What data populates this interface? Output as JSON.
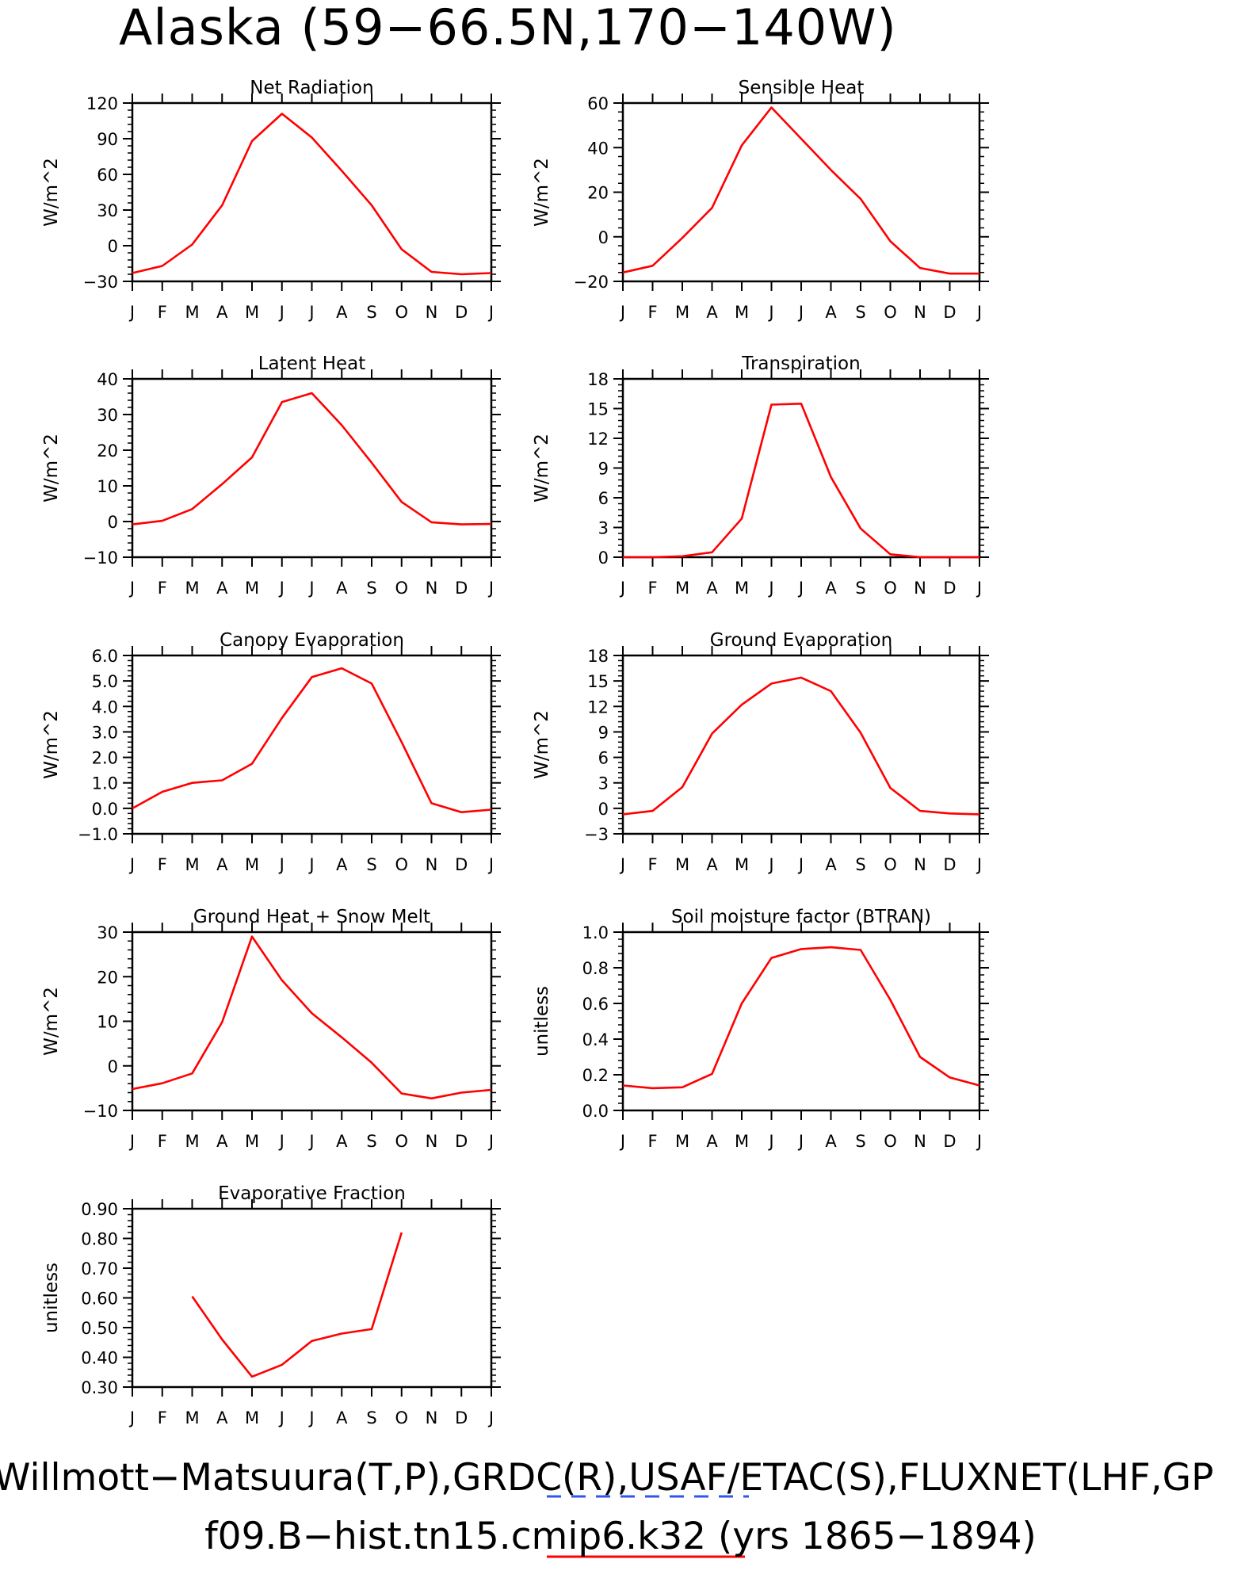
{
  "page": {
    "title": "Alaska (59−66.5N,170−140W)",
    "footer_line1": "Willmott−Matsuura(T,P),GRDC(R),USAF/ETAC(S),FLUXNET(LHF,GP",
    "footer_line2": "f09.B−hist.tn15.cmip6.k32 (yrs 1865−1894)",
    "colors": {
      "series": "#ff0000",
      "obs_legend": "#3355ee",
      "axes": "#000000"
    }
  },
  "chart_data": [
    {
      "type": "line",
      "title": "Net Radiation",
      "ylabel": "W/m^2",
      "x": [
        "J",
        "F",
        "M",
        "A",
        "M",
        "J",
        "J",
        "A",
        "S",
        "O",
        "N",
        "D",
        "J"
      ],
      "ylim": [
        -30,
        120
      ],
      "yticks": [
        -30,
        0,
        30,
        60,
        90,
        120
      ],
      "ytick_labels": [
        "−30",
        "0",
        "30",
        "60",
        "90",
        "120"
      ],
      "series": [
        {
          "values": [
            -23,
            -17,
            1,
            34,
            88,
            111,
            91,
            63,
            34,
            -3,
            -22,
            -24,
            -23
          ]
        }
      ]
    },
    {
      "type": "line",
      "title": "Sensible Heat",
      "ylabel": "W/m^2",
      "x": [
        "J",
        "F",
        "M",
        "A",
        "M",
        "J",
        "J",
        "A",
        "S",
        "O",
        "N",
        "D",
        "J"
      ],
      "ylim": [
        -20,
        60
      ],
      "yticks": [
        -20,
        0,
        20,
        40,
        60
      ],
      "ytick_labels": [
        "−20",
        "0",
        "20",
        "40",
        "60"
      ],
      "series": [
        {
          "values": [
            -16,
            -13,
            -0.5,
            13,
            41,
            58,
            44,
            30,
            17,
            -2,
            -14,
            -16.5,
            -16.5
          ]
        }
      ]
    },
    {
      "type": "line",
      "title": "Latent Heat",
      "ylabel": "W/m^2",
      "x": [
        "J",
        "F",
        "M",
        "A",
        "M",
        "J",
        "J",
        "A",
        "S",
        "O",
        "N",
        "D",
        "J"
      ],
      "ylim": [
        -10,
        40
      ],
      "yticks": [
        -10,
        0,
        10,
        20,
        30,
        40
      ],
      "ytick_labels": [
        "−10",
        "0",
        "10",
        "20",
        "30",
        "40"
      ],
      "series": [
        {
          "values": [
            -0.8,
            0.2,
            3.5,
            10.5,
            18,
            33.5,
            36,
            27,
            16.5,
            5.5,
            -0.2,
            -0.8,
            -0.7
          ]
        }
      ]
    },
    {
      "type": "line",
      "title": "Transpiration",
      "ylabel": "W/m^2",
      "x": [
        "J",
        "F",
        "M",
        "A",
        "M",
        "J",
        "J",
        "A",
        "S",
        "O",
        "N",
        "D",
        "J"
      ],
      "ylim": [
        0,
        18
      ],
      "yticks": [
        0,
        3,
        6,
        9,
        12,
        15,
        18
      ],
      "ytick_labels": [
        "0",
        "3",
        "6",
        "9",
        "12",
        "15",
        "18"
      ],
      "series": [
        {
          "values": [
            0,
            0,
            0.1,
            0.5,
            3.9,
            15.4,
            15.5,
            8.1,
            2.9,
            0.3,
            0,
            0,
            0
          ]
        }
      ]
    },
    {
      "type": "line",
      "title": "Canopy Evaporation",
      "ylabel": "W/m^2",
      "x": [
        "J",
        "F",
        "M",
        "A",
        "M",
        "J",
        "J",
        "A",
        "S",
        "O",
        "N",
        "D",
        "J"
      ],
      "ylim": [
        -1,
        6
      ],
      "yticks": [
        -1,
        0,
        1,
        2,
        3,
        4,
        5,
        6
      ],
      "ytick_labels": [
        "−1.0",
        "0.0",
        "1.0",
        "2.0",
        "3.0",
        "4.0",
        "5.0",
        "6.0"
      ],
      "series": [
        {
          "values": [
            0,
            0.65,
            1.0,
            1.1,
            1.75,
            3.55,
            5.15,
            5.5,
            4.9,
            2.6,
            0.2,
            -0.15,
            -0.05
          ]
        }
      ]
    },
    {
      "type": "line",
      "title": "Ground Evaporation",
      "ylabel": "W/m^2",
      "x": [
        "J",
        "F",
        "M",
        "A",
        "M",
        "J",
        "J",
        "A",
        "S",
        "O",
        "N",
        "D",
        "J"
      ],
      "ylim": [
        -3,
        18
      ],
      "yticks": [
        -3,
        0,
        3,
        6,
        9,
        12,
        15,
        18
      ],
      "ytick_labels": [
        "−3",
        "0",
        "3",
        "6",
        "9",
        "12",
        "15",
        "18"
      ],
      "series": [
        {
          "values": [
            -0.7,
            -0.3,
            2.5,
            8.8,
            12.2,
            14.7,
            15.4,
            13.8,
            8.9,
            2.4,
            -0.3,
            -0.6,
            -0.7
          ]
        }
      ]
    },
    {
      "type": "line",
      "title": "Ground Heat + Snow Melt",
      "ylabel": "W/m^2",
      "x": [
        "J",
        "F",
        "M",
        "A",
        "M",
        "J",
        "J",
        "A",
        "S",
        "O",
        "N",
        "D",
        "J"
      ],
      "ylim": [
        -10,
        30
      ],
      "yticks": [
        -10,
        0,
        10,
        20,
        30
      ],
      "ytick_labels": [
        "−10",
        "0",
        "10",
        "20",
        "30"
      ],
      "series": [
        {
          "values": [
            -5.2,
            -3.9,
            -1.7,
            9.8,
            29,
            19.2,
            11.8,
            6.4,
            0.7,
            -6.2,
            -7.3,
            -6.0,
            -5.4
          ]
        }
      ]
    },
    {
      "type": "line",
      "title": "Soil moisture factor (BTRAN)",
      "ylabel": "unitless",
      "x": [
        "J",
        "F",
        "M",
        "A",
        "M",
        "J",
        "J",
        "A",
        "S",
        "O",
        "N",
        "D",
        "J"
      ],
      "ylim": [
        0,
        1
      ],
      "yticks": [
        0,
        0.2,
        0.4,
        0.6,
        0.8,
        1.0
      ],
      "ytick_labels": [
        "0.0",
        "0.2",
        "0.4",
        "0.6",
        "0.8",
        "1.0"
      ],
      "series": [
        {
          "values": [
            0.14,
            0.125,
            0.13,
            0.205,
            0.6,
            0.855,
            0.905,
            0.915,
            0.9,
            0.62,
            0.3,
            0.185,
            0.14
          ]
        }
      ]
    },
    {
      "type": "line",
      "title": "Evaporative Fraction",
      "ylabel": "unitless",
      "x": [
        "J",
        "F",
        "M",
        "A",
        "M",
        "J",
        "J",
        "A",
        "S",
        "O",
        "N",
        "D",
        "J"
      ],
      "ylim": [
        0.3,
        0.9
      ],
      "yticks": [
        0.3,
        0.4,
        0.5,
        0.6,
        0.7,
        0.8,
        0.9
      ],
      "ytick_labels": [
        "0.30",
        "0.40",
        "0.50",
        "0.60",
        "0.70",
        "0.80",
        "0.90"
      ],
      "series": [
        {
          "values": [
            null,
            null,
            0.605,
            0.46,
            0.335,
            0.375,
            0.455,
            0.48,
            0.495,
            0.82,
            null,
            null,
            null
          ]
        }
      ]
    }
  ]
}
